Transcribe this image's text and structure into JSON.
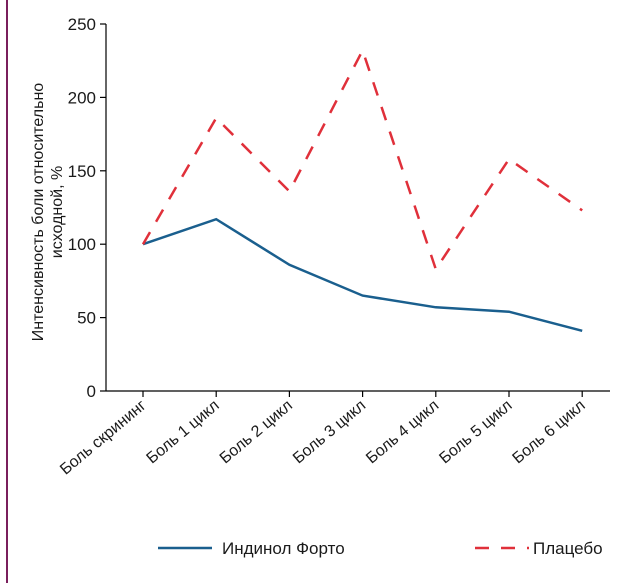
{
  "chart_data": {
    "type": "line",
    "categories": [
      "Боль скрининг",
      "Боль 1 цикл",
      "Боль 2 цикл",
      "Боль 3 цикл",
      "Боль 4 цикл",
      "Боль 5 цикл",
      "Боль 6 цикл"
    ],
    "ylabel_line1": "Интенсивность боли относительно",
    "ylabel_line2": "исходной, %",
    "xlabel": "",
    "ylim": [
      0,
      250
    ],
    "yticks": [
      0,
      50,
      100,
      150,
      200,
      250
    ],
    "grid": false,
    "legend_position": "bottom",
    "series": [
      {
        "name": "Индинол Форто",
        "values": [
          100,
          117,
          86,
          65,
          57,
          54,
          41
        ],
        "color": "#1a5f8e",
        "style": "solid"
      },
      {
        "name": "Плацебо",
        "values": [
          100,
          186,
          136,
          232,
          83,
          158,
          123
        ],
        "color": "#e0303a",
        "style": "dashed"
      }
    ]
  }
}
